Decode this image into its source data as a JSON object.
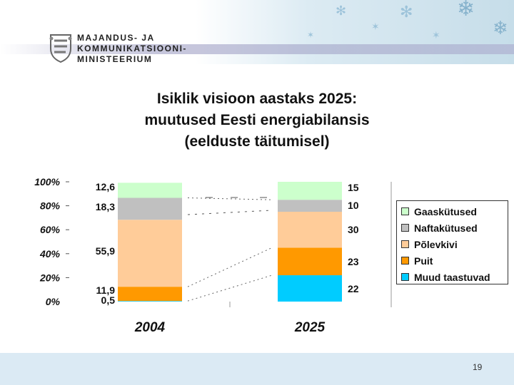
{
  "header": {
    "ministry_lines": [
      "MAJANDUS- JA",
      "KOMMUNIKATSIOONI-",
      "MINISTEERIUM"
    ]
  },
  "title_lines": [
    "Isiklik visioon aastaks 2025:",
    "muutused Eesti energiabilansis",
    "(eelduste täitumisel)"
  ],
  "page_number": "19",
  "colors": {
    "Gaaskütused": "#ccffcc",
    "Naftakütused": "#c0c0c0",
    "Põlevkivi": "#ffcc99",
    "Puit": "#ff9900",
    "Muud taastuvad": "#00ccff"
  },
  "chart_data": {
    "type": "bar",
    "stacked": true,
    "categories": [
      "2004",
      "2025"
    ],
    "ylim": [
      0,
      100
    ],
    "y_ticks": [
      "0%",
      "20%",
      "40%",
      "60%",
      "80%",
      "100%"
    ],
    "series": [
      {
        "name": "Muud taastuvad",
        "values": [
          0.5,
          22
        ],
        "labels": [
          "0,5",
          "22"
        ]
      },
      {
        "name": "Puit",
        "values": [
          11.9,
          23
        ],
        "labels": [
          "11,9",
          "23"
        ]
      },
      {
        "name": "Põlevkivi",
        "values": [
          55.9,
          30
        ],
        "labels": [
          "55,9",
          "30"
        ]
      },
      {
        "name": "Naftakütused",
        "values": [
          18.3,
          10
        ],
        "labels": [
          "18,3",
          "10"
        ]
      },
      {
        "name": "Gaaskütused",
        "values": [
          12.6,
          15
        ],
        "labels": [
          "12,6",
          "15"
        ]
      }
    ],
    "legend": [
      "Gaaskütused",
      "Naftakütused",
      "Põlevkivi",
      "Puit",
      "Muud taastuvad"
    ],
    "legend_position": "right"
  }
}
